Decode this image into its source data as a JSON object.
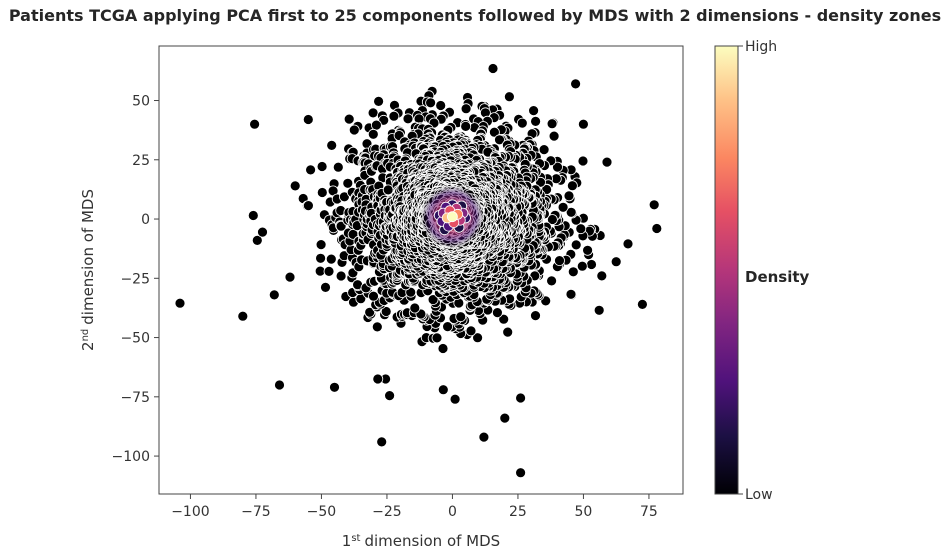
{
  "chart_data": {
    "type": "scatter",
    "title": "Patients TCGA applying PCA first to 25 components followed by MDS with 2 dimensions - density zones",
    "xlabel": "dimension of MDS",
    "xlabel_ordinal": "1",
    "xlabel_sup": "st",
    "ylabel": "dimension of MDS",
    "ylabel_ordinal": "2",
    "ylabel_sup": "nd",
    "xlim": [
      -112,
      88
    ],
    "ylim": [
      -116,
      73
    ],
    "xticks": [
      -100,
      -75,
      -50,
      -25,
      0,
      25,
      50,
      75
    ],
    "yticks": [
      -100,
      -75,
      -50,
      -25,
      0,
      25,
      50
    ],
    "xtick_labels": [
      "−100",
      "−75",
      "−50",
      "−25",
      "0",
      "25",
      "50",
      "75"
    ],
    "ytick_labels": [
      "−100",
      "−75",
      "−50",
      "−25",
      "0",
      "25",
      "50"
    ],
    "grid": false,
    "colormap": "magma",
    "colorbar": {
      "title": "Density",
      "high_label": "High",
      "low_label": "Low"
    },
    "colors": {
      "point": "#000000",
      "point_edge": "#ffffff",
      "axes": "#444444"
    },
    "cluster_center": [
      0,
      1
    ],
    "points": [
      [
        -104,
        -35.5
      ],
      [
        -80,
        -41
      ],
      [
        -75.5,
        40
      ],
      [
        -76,
        1.5
      ],
      [
        -74.5,
        -9
      ],
      [
        -72.5,
        -5.5
      ],
      [
        -68,
        -32
      ],
      [
        -66,
        -70
      ],
      [
        -62,
        -24.5
      ],
      [
        -60,
        14
      ],
      [
        -45,
        -71
      ],
      [
        -27,
        -94
      ],
      [
        12,
        -92
      ],
      [
        26,
        -107
      ],
      [
        20,
        -84
      ],
      [
        26,
        -75.5
      ],
      [
        1,
        -76
      ],
      [
        -24,
        -74.5
      ],
      [
        -25.5,
        -67.5
      ],
      [
        -28.5,
        -67.5
      ],
      [
        -3.5,
        -72
      ],
      [
        47,
        57
      ],
      [
        15.5,
        63.5
      ],
      [
        57,
        -24
      ],
      [
        59,
        24
      ],
      [
        62.5,
        -18
      ],
      [
        67,
        -10.5
      ],
      [
        72.5,
        -36
      ],
      [
        77,
        6
      ],
      [
        78,
        -4
      ],
      [
        56,
        -38.5
      ],
      [
        50,
        40
      ],
      [
        -55,
        42
      ]
    ],
    "bulk_point_count": 2600,
    "dense_points": [
      [
        0,
        1
      ],
      [
        -2,
        0.5
      ],
      [
        2,
        2
      ],
      [
        0.5,
        -1.5
      ],
      [
        -1,
        3.5
      ],
      [
        3,
        -0.5
      ],
      [
        -3.5,
        2.5
      ],
      [
        1.5,
        4.5
      ],
      [
        -1.5,
        -3
      ],
      [
        4,
        2.5
      ],
      [
        -4,
        -1
      ],
      [
        2.5,
        -3.5
      ],
      [
        -2.5,
        5
      ],
      [
        5,
        0.5
      ],
      [
        -5,
        1.5
      ],
      [
        0,
        6
      ],
      [
        3.5,
        5.5
      ],
      [
        -3,
        -4.5
      ]
    ]
  }
}
